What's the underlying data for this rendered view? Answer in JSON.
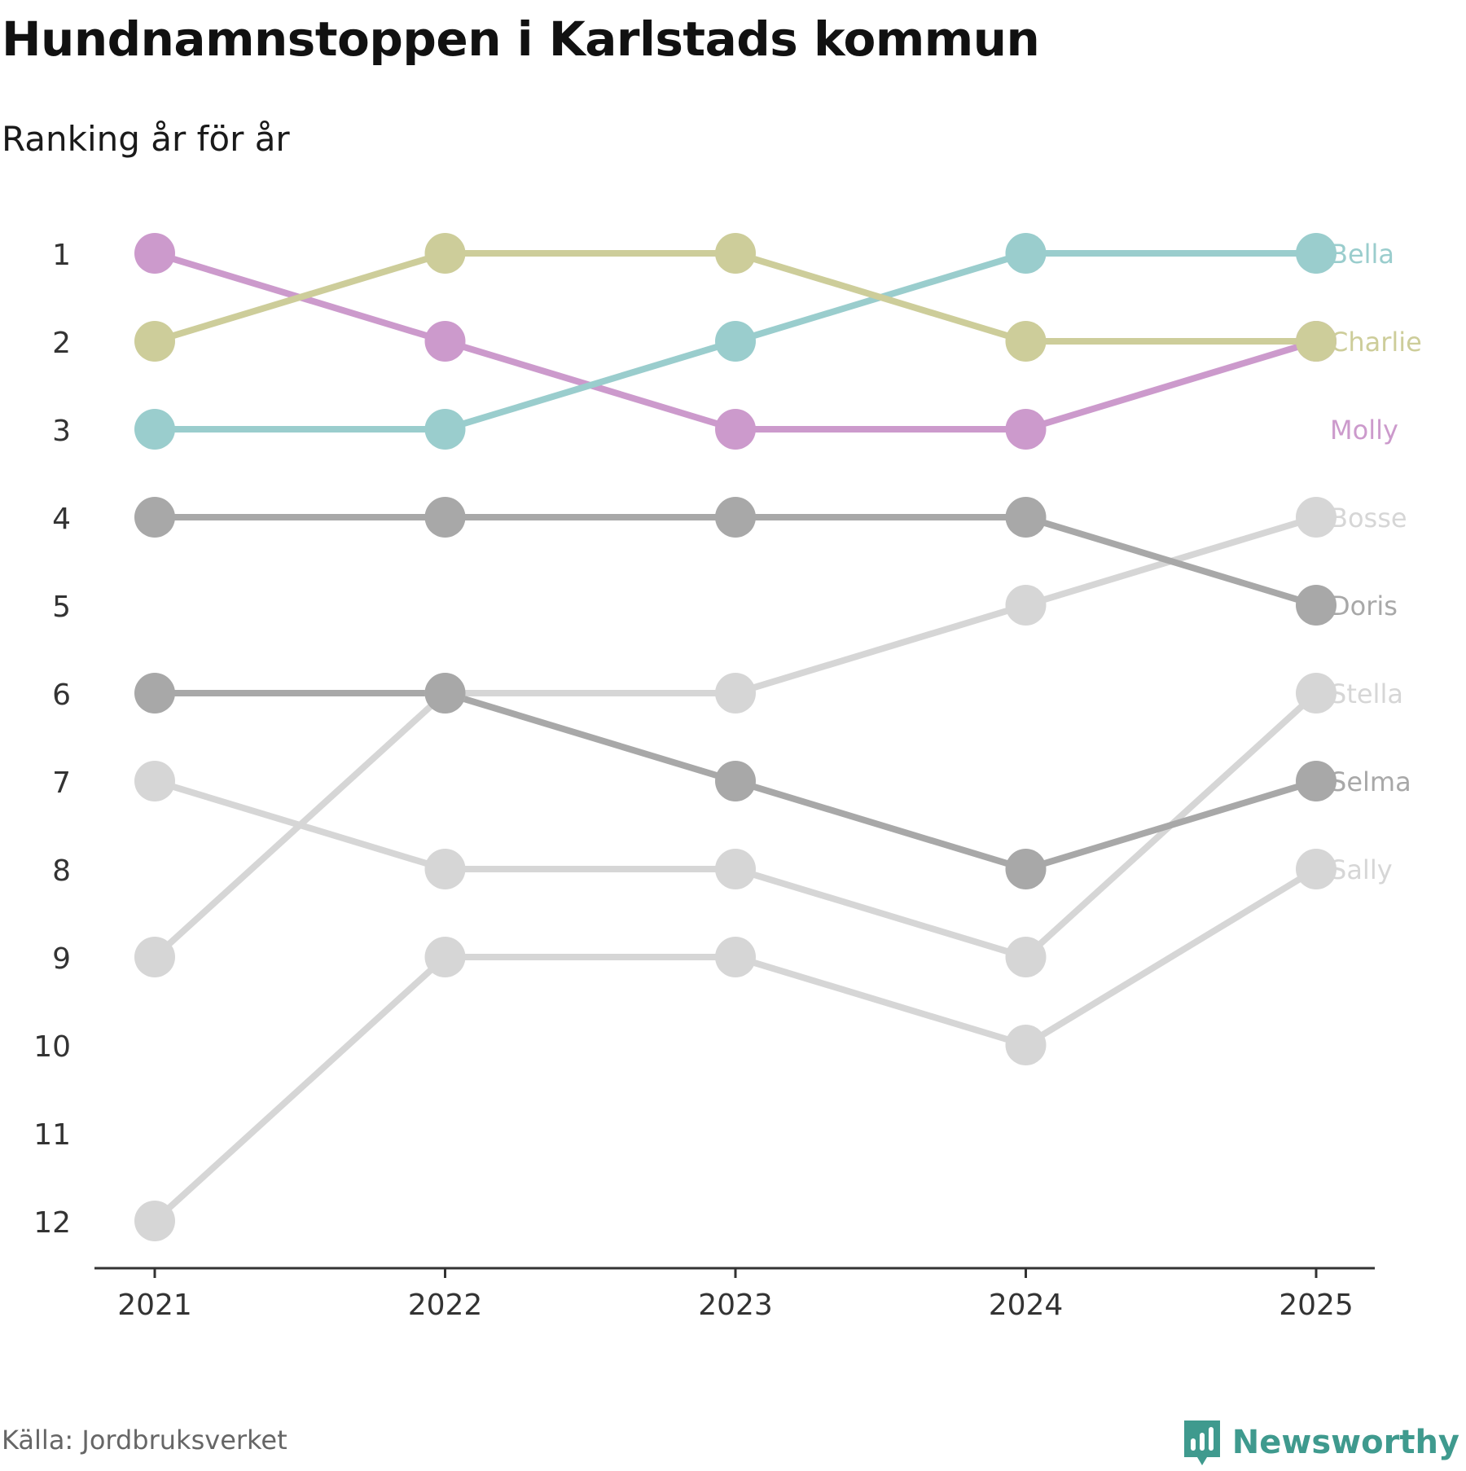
{
  "title": "Hundnamnstoppen i Karlstads kommun",
  "subtitle": "Ranking år för år",
  "source": "Källa: Jordbruksverket",
  "brand": {
    "name": "Newsworthy",
    "icon": "bar-chart-speech-bubble-icon",
    "color": "#3f9a8e"
  },
  "chart_data": {
    "type": "line",
    "subtype": "bump",
    "title": "Hundnamnstoppen i Karlstads kommun",
    "subtitle": "Ranking år för år",
    "x": [
      "2021",
      "2022",
      "2023",
      "2024",
      "2025"
    ],
    "y_ticks": [
      "1",
      "2",
      "3",
      "4",
      "5",
      "6",
      "7",
      "8",
      "9",
      "10",
      "11",
      "12"
    ],
    "ylim": [
      1,
      12
    ],
    "y_inverted": true,
    "grid": false,
    "legend": "direct labels right of last point",
    "series": [
      {
        "name": "Sally",
        "values": [
          12,
          9,
          9,
          10,
          8
        ],
        "color": "#d6d6d6"
      },
      {
        "name": "Stella",
        "values": [
          7,
          8,
          8,
          9,
          6
        ],
        "color": "#d6d6d6"
      },
      {
        "name": "Bosse",
        "values": [
          9,
          6,
          6,
          5,
          4
        ],
        "color": "#d6d6d6"
      },
      {
        "name": "Selma",
        "values": [
          6,
          6,
          7,
          8,
          7
        ],
        "color": "#a8a8a8"
      },
      {
        "name": "Doris",
        "values": [
          4,
          4,
          4,
          4,
          5
        ],
        "color": "#a8a8a8"
      },
      {
        "name": "Molly",
        "values": [
          1,
          2,
          3,
          3,
          2
        ],
        "color": "#cc9acc"
      },
      {
        "name": "Bella",
        "values": [
          3,
          3,
          2,
          1,
          1
        ],
        "color": "#9acdcd"
      },
      {
        "name": "Charlie",
        "values": [
          2,
          1,
          1,
          2,
          2
        ],
        "color": "#cdcd9a"
      }
    ]
  }
}
